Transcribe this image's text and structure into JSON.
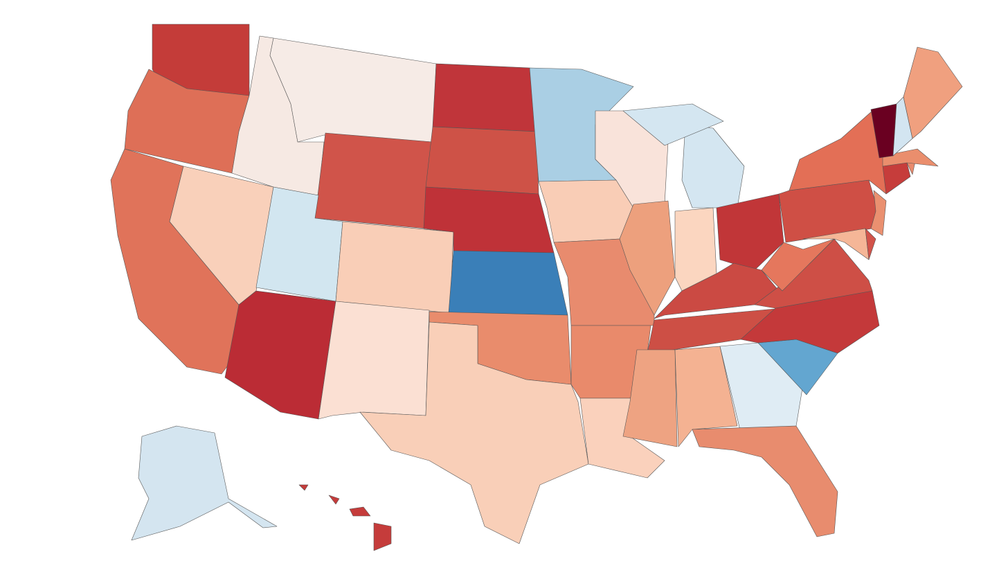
{
  "map": {
    "regions": [
      {
        "color": "#c43c39"
      },
      {
        "color": "#de6f57"
      },
      {
        "color": "#e0735a"
      },
      {
        "color": "#f9d0ba"
      },
      {
        "color": "#f6e9e3"
      },
      {
        "color": "#f6ebe6"
      },
      {
        "color": "#d0544a"
      },
      {
        "color": "#d2e6f0"
      },
      {
        "color": "#bb2c35"
      },
      {
        "color": "#f9ceb7"
      },
      {
        "color": "#fbe0d3"
      },
      {
        "color": "#c0353a"
      },
      {
        "color": "#ce5247"
      },
      {
        "color": "#bf3238"
      },
      {
        "color": "#3a7fb8"
      },
      {
        "color": "#e98c6c"
      },
      {
        "color": "#f9cfb8"
      },
      {
        "color": "#aacfe4"
      },
      {
        "color": "#f9cdb6"
      },
      {
        "color": "#e88b6e"
      },
      {
        "color": "#e98a6b"
      },
      {
        "color": "#fad1bc"
      },
      {
        "color": "#f9e3da"
      },
      {
        "color": "#eda07d"
      },
      {
        "color": "#d4e6f1"
      },
      {
        "color": "#fbd6c0"
      },
      {
        "color": "#c13638"
      },
      {
        "color": "#cb4a43"
      },
      {
        "color": "#cd4f45"
      },
      {
        "color": "#eea382"
      },
      {
        "color": "#f4b292"
      },
      {
        "color": "#dfecf4"
      },
      {
        "color": "#e88c6e"
      },
      {
        "color": "#63a6d0"
      },
      {
        "color": "#c4393a"
      },
      {
        "color": "#ce4f46"
      },
      {
        "color": "#e5775d"
      },
      {
        "color": "#cf4f45"
      },
      {
        "color": "#e36f56"
      },
      {
        "color": "#f5b697"
      },
      {
        "color": "#d2534a"
      },
      {
        "color": "#ea9070"
      },
      {
        "color": "#c63d3b"
      },
      {
        "color": "#e98a6d"
      },
      {
        "color": "#ea8e6d"
      },
      {
        "color": "#6a0021"
      },
      {
        "color": "#d3e5f1"
      },
      {
        "color": "#f0a07f"
      },
      {
        "color": "#d4e5f0"
      },
      {
        "color": "#c53c3b"
      }
    ]
  }
}
